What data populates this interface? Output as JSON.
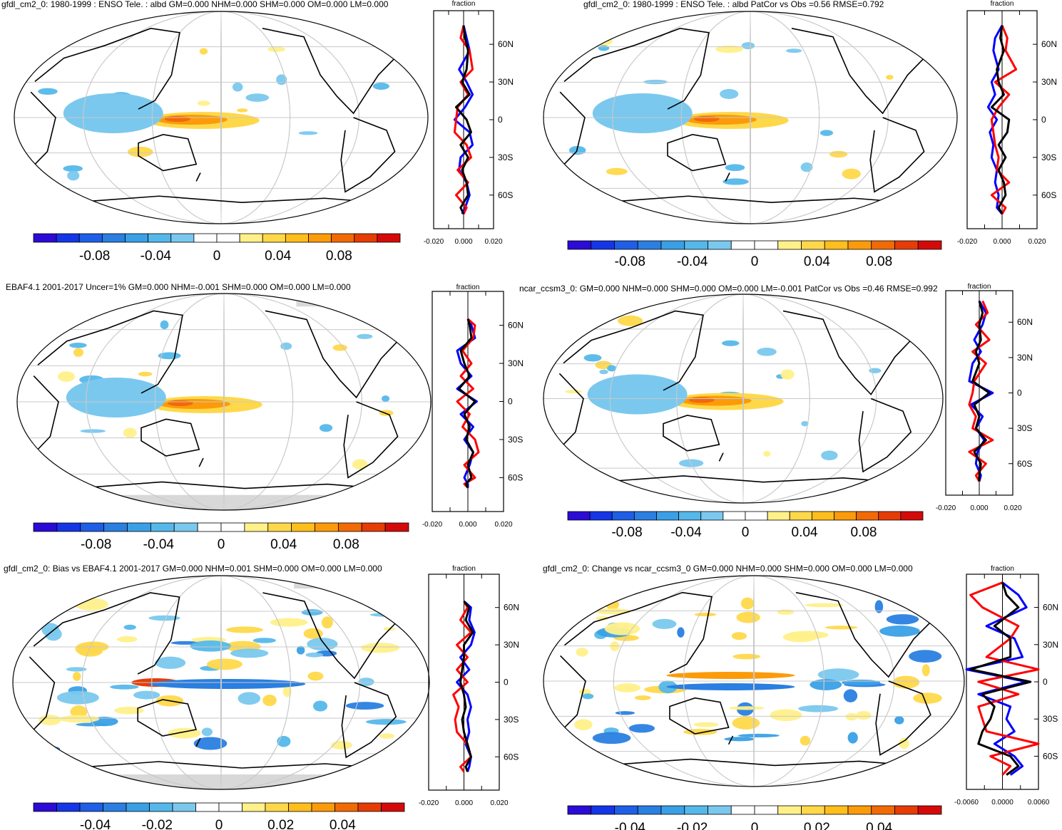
{
  "colors": {
    "land_outline": "#000000",
    "graticule": "#c8c8c8",
    "missing": "#d8d8d8",
    "line_model": "#0000ff",
    "line_obs": "#ff0000",
    "line_third": "#000000",
    "scale": [
      "#2b0bd6",
      "#1436e6",
      "#1f5ee6",
      "#2a7fe0",
      "#3aa0e6",
      "#55b8ea",
      "#7ac8ee",
      "#ffffff",
      "#ffffff",
      "#fff08a",
      "#ffd84a",
      "#ffbe1c",
      "#fb9b0a",
      "#f26a06",
      "#e63c06",
      "#d40a0a"
    ]
  },
  "chart_data": [
    {
      "type": "heatmap",
      "title": "gfdl_cm2_0: 1980-1999 : ENSO Tele. : albd GM=0.000 NHM=0.000 SHM=0.000 OM=0.000 LM=0.000",
      "colorbar_ticks": [
        "-0.08",
        "-0.04",
        "0",
        "0.04",
        "0.08"
      ],
      "colorbar_range": [
        -0.12,
        0.12
      ],
      "profile": {
        "xlabel": "fraction",
        "x_ticks": [
          "-0.020",
          "0.000",
          "0.020"
        ],
        "xlim": [
          -0.02,
          0.02
        ],
        "lat_ticks": [
          "60N",
          "30N",
          "0",
          "30S",
          "60S"
        ],
        "series": [
          {
            "name": "model",
            "color": "blue",
            "x": [
              0.0,
              0.002,
              0.004,
              -0.003,
              0.002,
              0.006,
              0.001,
              -0.006,
              0.004,
              0.006,
              -0.002,
              -0.003,
              0.002,
              0.004,
              0.001,
              -0.001
            ],
            "y": [
              75,
              65,
              55,
              40,
              30,
              20,
              10,
              0,
              -10,
              -20,
              -30,
              -40,
              -50,
              -60,
              -70,
              -75
            ]
          },
          {
            "name": "obs",
            "color": "red",
            "x": [
              0.0,
              -0.002,
              0.004,
              0.006,
              -0.002,
              0.003,
              -0.004,
              -0.005,
              -0.006,
              0.002,
              0.005,
              -0.004,
              0.003,
              -0.005,
              0.002,
              0.0
            ],
            "y": [
              75,
              65,
              55,
              40,
              30,
              20,
              10,
              0,
              -10,
              -20,
              -30,
              -40,
              -50,
              -60,
              -70,
              -75
            ]
          },
          {
            "name": "third",
            "color": "black",
            "x": [
              0.0,
              0.001,
              0.003,
              0.002,
              -0.001,
              0.004,
              -0.005,
              0.002,
              0.005,
              -0.002,
              0.003,
              -0.001,
              0.002,
              0.003,
              -0.002,
              0.0
            ],
            "y": [
              75,
              65,
              55,
              40,
              30,
              20,
              10,
              0,
              -10,
              -20,
              -30,
              -40,
              -50,
              -60,
              -70,
              -75
            ]
          }
        ]
      }
    },
    {
      "type": "heatmap",
      "title": "gfdl_cm2_0: 1980-1999 : ENSO Tele. : albd PatCor vs Obs =0.56 RMSE=0.792",
      "colorbar_ticks": [
        "-0.08",
        "-0.04",
        "0",
        "0.04",
        "0.08"
      ],
      "colorbar_range": [
        -0.12,
        0.12
      ],
      "profile": {
        "xlabel": "fraction",
        "x_ticks": [
          "-0.020",
          "0.000",
          "0.020"
        ],
        "xlim": [
          -0.02,
          0.02
        ],
        "lat_ticks": [
          "60N",
          "30N",
          "0",
          "30S",
          "60S"
        ],
        "series": [
          {
            "name": "model",
            "color": "blue",
            "x": [
              0.0,
              -0.004,
              -0.005,
              -0.002,
              -0.006,
              -0.004,
              -0.008,
              -0.003,
              -0.007,
              -0.005,
              -0.006,
              -0.003,
              -0.004,
              -0.002,
              -0.003,
              0.0
            ],
            "y": [
              75,
              65,
              55,
              40,
              30,
              20,
              10,
              0,
              -10,
              -20,
              -30,
              -40,
              -50,
              -60,
              -70,
              -75
            ]
          },
          {
            "name": "obs",
            "color": "red",
            "x": [
              0.0,
              0.003,
              0.002,
              0.008,
              -0.004,
              0.004,
              -0.002,
              -0.006,
              -0.005,
              -0.004,
              -0.002,
              -0.003,
              0.004,
              -0.006,
              0.002,
              0.0
            ],
            "y": [
              75,
              65,
              55,
              40,
              30,
              20,
              10,
              0,
              -10,
              -20,
              -30,
              -40,
              -50,
              -60,
              -70,
              -75
            ]
          },
          {
            "name": "third",
            "color": "black",
            "x": [
              0.0,
              -0.001,
              0.001,
              -0.003,
              -0.002,
              0.001,
              -0.006,
              0.004,
              0.003,
              -0.002,
              0.002,
              -0.002,
              0.001,
              0.002,
              -0.002,
              0.0
            ],
            "y": [
              75,
              65,
              55,
              40,
              30,
              20,
              10,
              0,
              -10,
              -20,
              -30,
              -40,
              -50,
              -60,
              -70,
              -75
            ]
          }
        ]
      }
    },
    {
      "type": "heatmap",
      "title": "EBAF4.1 2001-2017 Uncer=1% GM=0.000 NHM=-0.001 SHM=0.000 OM=0.000 LM=0.000",
      "colorbar_ticks": [
        "-0.08",
        "-0.04",
        "0",
        "0.04",
        "0.08"
      ],
      "colorbar_range": [
        -0.12,
        0.12
      ],
      "profile": {
        "xlabel": "fraction",
        "x_ticks": [
          "-0.020",
          "0.000",
          "0.020"
        ],
        "xlim": [
          -0.02,
          0.02
        ],
        "lat_ticks": [
          "60N",
          "30N",
          "0",
          "30S",
          "60S"
        ],
        "series": [
          {
            "name": "model",
            "color": "blue",
            "x": [
              0.0,
              0.002,
              0.004,
              -0.006,
              -0.004,
              0.002,
              -0.006,
              0.005,
              -0.004,
              0.003,
              -0.002,
              0.003,
              0.001,
              -0.002,
              0.0,
              0.0
            ],
            "y": [
              65,
              60,
              50,
              40,
              30,
              20,
              10,
              0,
              -10,
              -20,
              -30,
              -40,
              -50,
              -60,
              -65,
              -68
            ]
          },
          {
            "name": "obs",
            "color": "red",
            "x": [
              0.0,
              0.004,
              0.003,
              -0.003,
              0.002,
              -0.004,
              0.003,
              -0.006,
              0.001,
              -0.003,
              0.004,
              0.006,
              -0.002,
              0.004,
              -0.002,
              0.0
            ],
            "y": [
              65,
              60,
              50,
              40,
              30,
              20,
              10,
              0,
              -10,
              -20,
              -30,
              -40,
              -50,
              -60,
              -65,
              -68
            ]
          },
          {
            "name": "third",
            "color": "black",
            "x": [
              0.0,
              0.001,
              0.002,
              -0.004,
              -0.002,
              0.001,
              -0.005,
              0.004,
              -0.002,
              0.001,
              -0.001,
              0.003,
              0.0,
              0.002,
              -0.001,
              0.0
            ],
            "y": [
              65,
              60,
              50,
              40,
              30,
              20,
              10,
              0,
              -10,
              -20,
              -30,
              -40,
              -50,
              -60,
              -65,
              -68
            ]
          }
        ]
      }
    },
    {
      "type": "heatmap",
      "title": "ncar_ccsm3_0: GM=0.000 NHM=0.000 SHM=0.000 OM=0.000 LM=-0.001 PatCor vs Obs =0.46 RMSE=0.992",
      "colorbar_ticks": [
        "-0.08",
        "-0.04",
        "0",
        "0.04",
        "0.08"
      ],
      "colorbar_range": [
        -0.12,
        0.12
      ],
      "profile": {
        "xlabel": "fraction",
        "x_ticks": [
          "-0.020",
          "0.000",
          "0.020"
        ],
        "xlim": [
          -0.02,
          0.02
        ],
        "lat_ticks": [
          "60N",
          "30N",
          "0",
          "30S",
          "60S"
        ],
        "series": [
          {
            "name": "model",
            "color": "blue",
            "x": [
              0.0,
              0.004,
              0.002,
              -0.003,
              0.001,
              -0.004,
              -0.006,
              0.008,
              -0.005,
              0.002,
              -0.002,
              0.003,
              -0.001,
              -0.002,
              0.001,
              0.0
            ],
            "y": [
              78,
              68,
              58,
              45,
              35,
              25,
              10,
              0,
              -10,
              -20,
              -30,
              -40,
              -50,
              -60,
              -70,
              -75
            ]
          },
          {
            "name": "obs",
            "color": "red",
            "x": [
              0.002,
              0.005,
              -0.002,
              0.006,
              -0.004,
              0.004,
              -0.003,
              -0.004,
              -0.006,
              -0.002,
              -0.004,
              0.008,
              -0.006,
              0.004,
              -0.002,
              0.0
            ],
            "y": [
              78,
              68,
              58,
              45,
              35,
              25,
              10,
              0,
              -10,
              -20,
              -30,
              -40,
              -50,
              -60,
              -70,
              -75
            ]
          },
          {
            "name": "third",
            "color": "black",
            "x": [
              0.0,
              0.002,
              0.0,
              0.001,
              -0.002,
              0.0,
              -0.004,
              0.006,
              -0.003,
              0.0,
              -0.002,
              0.004,
              -0.003,
              0.001,
              0.0,
              0.0
            ],
            "y": [
              78,
              68,
              58,
              45,
              35,
              25,
              10,
              0,
              -10,
              -20,
              -30,
              -40,
              -50,
              -60,
              -70,
              -75
            ]
          }
        ]
      }
    },
    {
      "type": "heatmap",
      "title": "gfdl_cm2_0: Bias vs EBAF4.1 2001-2017 GM=0.000 NHM=0.001 SHM=0.000 OM=0.000 LM=0.000",
      "colorbar_ticks": [
        "-0.04",
        "-0.02",
        "0",
        "0.02",
        "0.04"
      ],
      "colorbar_range": [
        -0.06,
        0.06
      ],
      "profile": {
        "xlabel": "fraction",
        "x_ticks": [
          "-0.020",
          "0.000",
          "0.020"
        ],
        "xlim": [
          -0.02,
          0.02
        ],
        "lat_ticks": [
          "60N",
          "30N",
          "0",
          "30S",
          "60S"
        ],
        "series": [
          {
            "name": "model",
            "color": "blue",
            "x": [
              0.0,
              0.004,
              0.003,
              0.006,
              0.004,
              -0.002,
              0.003,
              -0.004,
              0.002,
              0.004,
              0.002,
              0.003,
              0.001,
              0.004,
              0.003,
              0.002
            ],
            "y": [
              65,
              60,
              50,
              40,
              30,
              20,
              10,
              0,
              -10,
              -20,
              -30,
              -40,
              -50,
              -60,
              -68,
              -72
            ]
          },
          {
            "name": "obs",
            "color": "red",
            "x": [
              0.0,
              0.002,
              -0.002,
              0.004,
              -0.004,
              0.002,
              -0.004,
              0.002,
              -0.006,
              -0.003,
              -0.005,
              -0.004,
              0.002,
              0.004,
              -0.002,
              0.0
            ],
            "y": [
              65,
              60,
              50,
              40,
              30,
              20,
              10,
              0,
              -10,
              -20,
              -30,
              -40,
              -50,
              -60,
              -68,
              -72
            ]
          },
          {
            "name": "third",
            "color": "black",
            "x": [
              0.0,
              0.003,
              0.001,
              0.005,
              0.0,
              0.0,
              -0.001,
              -0.002,
              0.0,
              0.001,
              -0.001,
              0.0,
              0.002,
              0.004,
              0.001,
              0.002
            ],
            "y": [
              65,
              60,
              50,
              40,
              30,
              20,
              10,
              0,
              -10,
              -20,
              -30,
              -40,
              -50,
              -60,
              -68,
              -72
            ]
          }
        ]
      }
    },
    {
      "type": "heatmap",
      "title": "gfdl_cm2_0: Change vs ncar_ccsm3_0 GM=0.000 NHM=0.000 SHM=0.000 OM=0.000 LM=0.000",
      "colorbar_ticks": [
        "-0.04",
        "-0.02",
        "0",
        "0.02",
        "0.04"
      ],
      "colorbar_range": [
        -0.06,
        0.06
      ],
      "profile": {
        "xlabel": "fraction",
        "x_ticks": [
          "-0.0060",
          "0.0000",
          "0.0060"
        ],
        "xlim": [
          -0.009,
          0.009
        ],
        "lat_ticks": [
          "60N",
          "30N",
          "0",
          "30S",
          "60S"
        ],
        "series": [
          {
            "name": "model",
            "color": "blue",
            "x": [
              0.0,
              0.004,
              0.006,
              -0.004,
              0.003,
              0.005,
              -0.009,
              0.006,
              -0.006,
              0.002,
              0.001,
              0.003,
              -0.002,
              0.003,
              0.005,
              0.002
            ],
            "y": [
              80,
              70,
              60,
              45,
              35,
              20,
              10,
              0,
              -10,
              -20,
              -30,
              -40,
              -50,
              -60,
              -68,
              -75
            ]
          },
          {
            "name": "obs",
            "color": "red",
            "x": [
              0.0,
              -0.008,
              -0.005,
              0.004,
              0.002,
              -0.004,
              0.009,
              -0.006,
              0.004,
              -0.006,
              -0.005,
              -0.004,
              0.009,
              -0.003,
              0.002,
              0.0
            ],
            "y": [
              80,
              70,
              60,
              45,
              35,
              20,
              10,
              0,
              -10,
              -20,
              -30,
              -40,
              -50,
              -60,
              -68,
              -75
            ]
          },
          {
            "name": "third",
            "color": "black",
            "x": [
              0.0,
              0.001,
              0.004,
              -0.002,
              0.002,
              0.002,
              -0.008,
              0.007,
              -0.005,
              -0.002,
              -0.003,
              -0.005,
              -0.006,
              0.002,
              0.004,
              0.001
            ],
            "y": [
              80,
              70,
              60,
              45,
              35,
              20,
              10,
              0,
              -10,
              -20,
              -30,
              -40,
              -50,
              -60,
              -68,
              -75
            ]
          }
        ]
      }
    }
  ]
}
